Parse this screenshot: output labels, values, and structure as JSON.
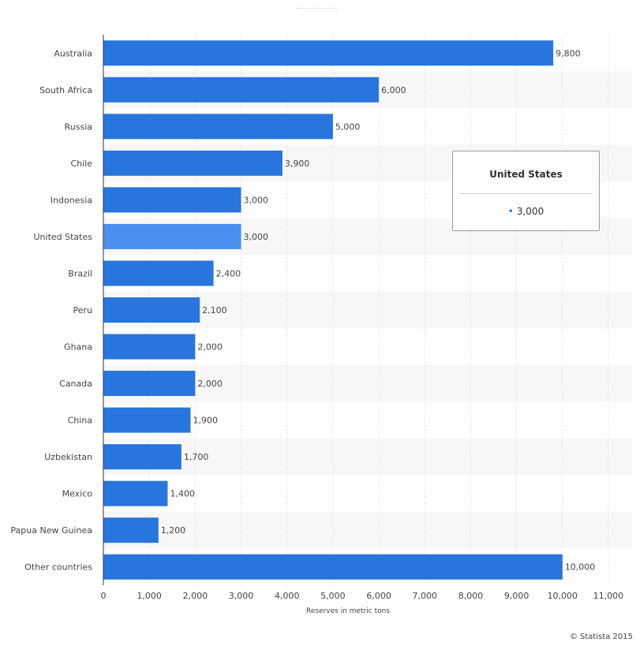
{
  "chart_data": {
    "type": "bar",
    "orientation": "horizontal",
    "categories": [
      "Australia",
      "South Africa",
      "Russia",
      "Chile",
      "Indonesia",
      "United States",
      "Brazil",
      "Peru",
      "Ghana",
      "Canada",
      "China",
      "Uzbekistan",
      "Mexico",
      "Papua New Guinea",
      "Other countries"
    ],
    "values": [
      9800,
      6000,
      5000,
      3900,
      3000,
      3000,
      2400,
      2100,
      2000,
      2000,
      1900,
      1700,
      1400,
      1200,
      10000
    ],
    "value_labels": [
      "9,800",
      "6,000",
      "5,000",
      "3,900",
      "3,000",
      "3,000",
      "2,400",
      "2,100",
      "2,000",
      "2,000",
      "1,900",
      "1,700",
      "1,400",
      "1,200",
      "10,000"
    ],
    "highlighted_category": "United States",
    "xlabel": "Reserves in metric tons",
    "xlim": [
      0,
      11000
    ],
    "x_ticks": [
      0,
      1000,
      2000,
      3000,
      4000,
      5000,
      6000,
      7000,
      8000,
      9000,
      10000,
      11000
    ],
    "x_tick_labels": [
      "0",
      "1,000",
      "2,000",
      "3,000",
      "4,000",
      "5,000",
      "6,000",
      "7,000",
      "8,000",
      "9,000",
      "10,000",
      "11,000"
    ],
    "grid": "vertical dotted",
    "colors": {
      "bar": "#2876dd",
      "bar_highlight": "#4a90f0",
      "band": "#f7f7f7"
    }
  },
  "tooltip": {
    "title": "United States",
    "bullet": "•",
    "value": "3,000"
  },
  "credit": "© Statista 2015"
}
